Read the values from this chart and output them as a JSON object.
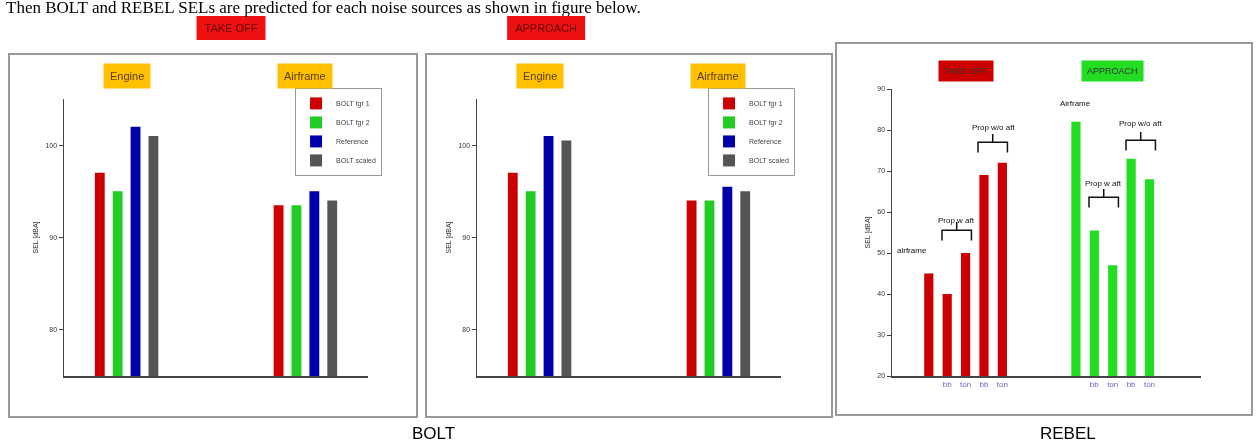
{
  "chart_data": [
    {
      "type": "bar",
      "title": "TAKE OFF",
      "ylabel": "SEL [dBA]",
      "categories": [
        "Engine",
        "Airframe"
      ],
      "series": [
        {
          "name": "BOLT fgr 1",
          "color": "#cc0000",
          "values": [
            97,
            93.5
          ]
        },
        {
          "name": "BOLT fgr 2",
          "color": "#22cc22",
          "values": [
            95,
            93.5
          ]
        },
        {
          "name": "Reference",
          "color": "#0000aa",
          "values": [
            102,
            95
          ]
        },
        {
          "name": "BOLT scaled",
          "color": "#555555",
          "values": [
            101,
            94
          ]
        }
      ],
      "ylim": [
        75,
        105
      ],
      "yticks": [
        80,
        90,
        100
      ],
      "legend": "top right",
      "grid": false,
      "annotations": [
        "Then BOLT and REBEL SELs are predicted for each noise sources as shown in figure below."
      ]
    },
    {
      "type": "bar",
      "title": "APPROACH",
      "ylabel": "SEL [dBA]",
      "categories": [
        "Engine",
        "Airframe"
      ],
      "series": [
        {
          "name": "BOLT fgr 1",
          "color": "#cc0000",
          "values": [
            97,
            94
          ]
        },
        {
          "name": "BOLT fgr 2",
          "color": "#22cc22",
          "values": [
            95,
            94
          ]
        },
        {
          "name": "Reference",
          "color": "#0000aa",
          "values": [
            101,
            95.5
          ]
        },
        {
          "name": "BOLT scaled",
          "color": "#555555",
          "values": [
            100.5,
            95
          ]
        }
      ],
      "ylim": [
        75,
        105
      ],
      "yticks": [
        80,
        90,
        100
      ],
      "legend": "top right",
      "grid": false,
      "annotations": [
        "BOLT"
      ]
    },
    {
      "type": "bar",
      "ylabel": "SEL [dBA]",
      "categories": [
        null,
        "bb",
        "ton",
        "bb",
        "ton",
        null,
        null,
        null,
        null,
        "bb",
        "ton",
        "bb",
        "ton"
      ],
      "series": [
        {
          "name": "TAKE OFF",
          "color": "#cc0000",
          "values": [
            45,
            40,
            50,
            69,
            72,
            null,
            null,
            null,
            null,
            null,
            null,
            null,
            null
          ]
        },
        {
          "name": "APPROACH",
          "color": "#22dd22",
          "values": [
            null,
            null,
            null,
            null,
            null,
            null,
            null,
            null,
            82,
            55.5,
            47,
            73,
            68
          ]
        }
      ],
      "ylim": [
        20,
        90
      ],
      "yticks": [
        20,
        30,
        40,
        50,
        60,
        70,
        80,
        90
      ],
      "grid": false,
      "annotations": [
        "airframe",
        "Prop w aft",
        "Prop w/o aft",
        "Airframe",
        "Prop w aft",
        "Prop w/o aft",
        "REBEL"
      ]
    }
  ]
}
